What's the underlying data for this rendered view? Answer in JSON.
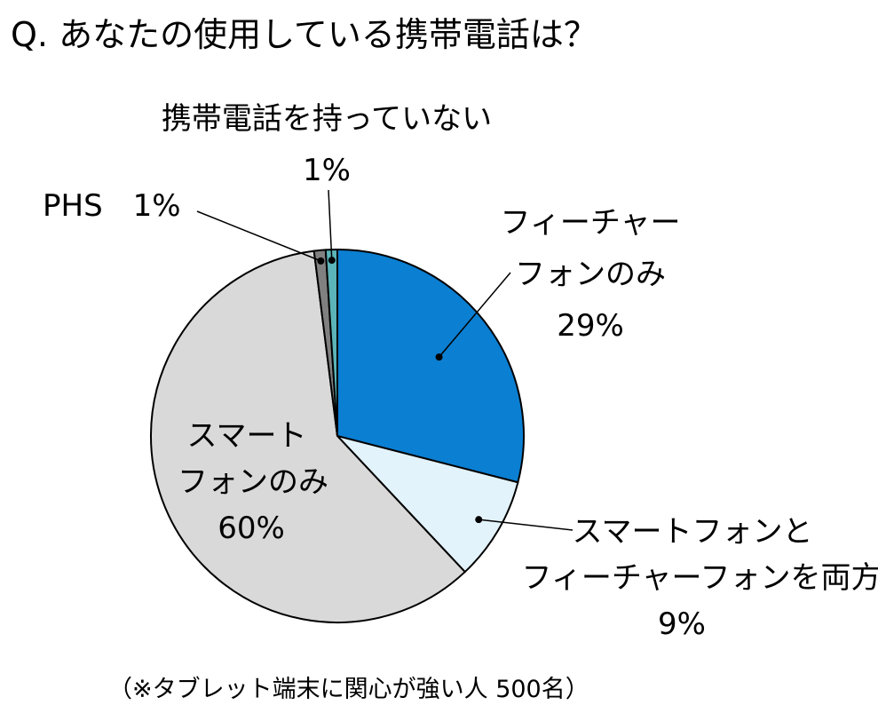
{
  "title": "Q. あなたの使用している携帯電話は？",
  "note": "（※タブレット端末に関心が強い人 500名）",
  "chart_data": {
    "type": "pie",
    "title": "Q. あなたの使用している携帯電話は？",
    "start": "12 o'clock, clockwise",
    "slices": [
      {
        "label_lines": [
          "フィーチャー",
          "フォンのみ",
          "29%"
        ],
        "label": "フィーチャーフォンのみ",
        "value": 29,
        "color": "#0B7FD2"
      },
      {
        "label_lines": [
          "スマートフォンと",
          "フィーチャーフォンを両方",
          "9%"
        ],
        "label": "スマートフォンとフィーチャーフォンを両方",
        "value": 9,
        "color": "#E3F3FC"
      },
      {
        "label_lines": [
          "スマート",
          "フォンのみ",
          "60%"
        ],
        "label": "スマートフォンのみ",
        "value": 60,
        "color": "#D9D9D9"
      },
      {
        "label_lines": [
          "PHS　1%"
        ],
        "label": "PHS",
        "value": 1,
        "color": "#808080"
      },
      {
        "label_lines": [
          "携帯電話を持っていない",
          "1%"
        ],
        "label": "携帯電話を持っていない",
        "value": 1,
        "color": "#5BB4B8"
      }
    ]
  }
}
